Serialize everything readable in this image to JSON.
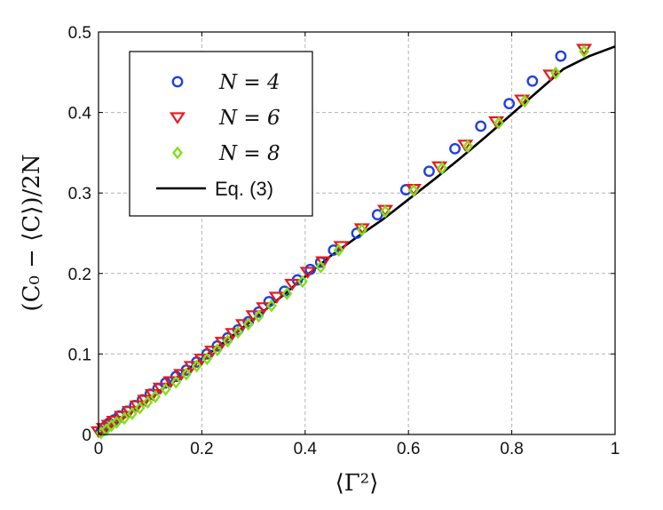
{
  "chart_data": {
    "type": "scatter",
    "xlabel": "⟨Γ²⟩",
    "ylabel": "(C₀ − ⟨C⟩)/2N",
    "xlim": [
      0,
      1
    ],
    "ylim": [
      0,
      0.5
    ],
    "x_ticks": [
      "0",
      "0.2",
      "0.4",
      "0.6",
      "0.8",
      "1"
    ],
    "y_ticks": [
      "0",
      "0.1",
      "0.2",
      "0.3",
      "0.4",
      "0.5"
    ],
    "grid": true,
    "legend_position": "top-left",
    "colors": {
      "n4": "#1f3fe0",
      "n6": "#e31a1c",
      "n8": "#7fe01a",
      "eq": "#000000"
    },
    "series": [
      {
        "name": "N = 4",
        "marker": "circle",
        "points": [
          [
            0.005,
            0.004
          ],
          [
            0.012,
            0.009
          ],
          [
            0.02,
            0.014
          ],
          [
            0.03,
            0.018
          ],
          [
            0.04,
            0.023
          ],
          [
            0.055,
            0.029
          ],
          [
            0.07,
            0.036
          ],
          [
            0.085,
            0.043
          ],
          [
            0.1,
            0.05
          ],
          [
            0.115,
            0.057
          ],
          [
            0.13,
            0.064
          ],
          [
            0.15,
            0.072
          ],
          [
            0.17,
            0.08
          ],
          [
            0.19,
            0.09
          ],
          [
            0.21,
            0.1
          ],
          [
            0.23,
            0.11
          ],
          [
            0.25,
            0.12
          ],
          [
            0.27,
            0.13
          ],
          [
            0.29,
            0.14
          ],
          [
            0.31,
            0.152
          ],
          [
            0.33,
            0.165
          ],
          [
            0.36,
            0.178
          ],
          [
            0.385,
            0.192
          ],
          [
            0.41,
            0.205
          ],
          [
            0.43,
            0.214
          ],
          [
            0.455,
            0.229
          ],
          [
            0.5,
            0.25
          ],
          [
            0.54,
            0.273
          ],
          [
            0.595,
            0.304
          ],
          [
            0.64,
            0.327
          ],
          [
            0.69,
            0.355
          ],
          [
            0.74,
            0.383
          ],
          [
            0.795,
            0.411
          ],
          [
            0.84,
            0.439
          ],
          [
            0.895,
            0.47
          ]
        ]
      },
      {
        "name": "N = 6",
        "marker": "triangle-down",
        "points": [
          [
            0.0,
            0.004
          ],
          [
            0.01,
            0.008
          ],
          [
            0.02,
            0.012
          ],
          [
            0.03,
            0.017
          ],
          [
            0.045,
            0.023
          ],
          [
            0.06,
            0.029
          ],
          [
            0.075,
            0.036
          ],
          [
            0.09,
            0.043
          ],
          [
            0.105,
            0.05
          ],
          [
            0.12,
            0.058
          ],
          [
            0.14,
            0.066
          ],
          [
            0.16,
            0.075
          ],
          [
            0.18,
            0.085
          ],
          [
            0.2,
            0.094
          ],
          [
            0.22,
            0.104
          ],
          [
            0.24,
            0.115
          ],
          [
            0.26,
            0.126
          ],
          [
            0.28,
            0.137
          ],
          [
            0.3,
            0.148
          ],
          [
            0.32,
            0.158
          ],
          [
            0.345,
            0.171
          ],
          [
            0.375,
            0.187
          ],
          [
            0.405,
            0.202
          ],
          [
            0.435,
            0.215
          ],
          [
            0.47,
            0.234
          ],
          [
            0.51,
            0.256
          ],
          [
            0.555,
            0.279
          ],
          [
            0.61,
            0.305
          ],
          [
            0.66,
            0.333
          ],
          [
            0.71,
            0.36
          ],
          [
            0.77,
            0.389
          ],
          [
            0.82,
            0.416
          ],
          [
            0.875,
            0.447
          ],
          [
            0.94,
            0.479
          ]
        ]
      },
      {
        "name": "N = 8",
        "marker": "diamond",
        "points": [
          [
            0.005,
            0.002
          ],
          [
            0.015,
            0.006
          ],
          [
            0.025,
            0.011
          ],
          [
            0.035,
            0.015
          ],
          [
            0.05,
            0.02
          ],
          [
            0.065,
            0.026
          ],
          [
            0.08,
            0.033
          ],
          [
            0.095,
            0.04
          ],
          [
            0.11,
            0.047
          ],
          [
            0.13,
            0.056
          ],
          [
            0.15,
            0.065
          ],
          [
            0.17,
            0.075
          ],
          [
            0.19,
            0.085
          ],
          [
            0.21,
            0.094
          ],
          [
            0.23,
            0.105
          ],
          [
            0.25,
            0.116
          ],
          [
            0.27,
            0.127
          ],
          [
            0.29,
            0.137
          ],
          [
            0.31,
            0.147
          ],
          [
            0.335,
            0.16
          ],
          [
            0.365,
            0.175
          ],
          [
            0.395,
            0.19
          ],
          [
            0.43,
            0.208
          ],
          [
            0.465,
            0.229
          ],
          [
            0.51,
            0.254
          ],
          [
            0.555,
            0.277
          ],
          [
            0.61,
            0.303
          ],
          [
            0.665,
            0.331
          ],
          [
            0.715,
            0.358
          ],
          [
            0.775,
            0.387
          ],
          [
            0.825,
            0.414
          ],
          [
            0.885,
            0.449
          ],
          [
            0.94,
            0.476
          ]
        ]
      },
      {
        "name": "Eq. (3)",
        "marker": "line",
        "points": [
          [
            0.0,
            0.0
          ],
          [
            0.05,
            0.021
          ],
          [
            0.1,
            0.045
          ],
          [
            0.15,
            0.07
          ],
          [
            0.2,
            0.094
          ],
          [
            0.25,
            0.118
          ],
          [
            0.3,
            0.143
          ],
          [
            0.35,
            0.169
          ],
          [
            0.4,
            0.196
          ],
          [
            0.45,
            0.222
          ],
          [
            0.5,
            0.245
          ],
          [
            0.55,
            0.267
          ],
          [
            0.6,
            0.292
          ],
          [
            0.65,
            0.317
          ],
          [
            0.7,
            0.343
          ],
          [
            0.75,
            0.37
          ],
          [
            0.8,
            0.398
          ],
          [
            0.85,
            0.426
          ],
          [
            0.9,
            0.454
          ],
          [
            0.95,
            0.47
          ],
          [
            1.0,
            0.482
          ]
        ]
      }
    ],
    "legend": [
      {
        "marker": "circle",
        "label": "N = 4"
      },
      {
        "marker": "triangle-down",
        "label": "N = 6"
      },
      {
        "marker": "diamond",
        "label": "N = 8"
      },
      {
        "marker": "line",
        "label": "Eq. (3)"
      }
    ]
  }
}
